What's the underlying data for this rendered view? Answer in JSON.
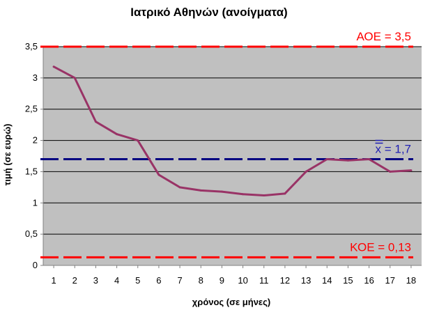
{
  "chart_data": {
    "type": "line",
    "title": "Ιατρικό Αθηνών (ανοίγματα)",
    "xlabel": "χρόνος (σε μήνες)",
    "ylabel": "τιμή (σε ευρώ)",
    "x": [
      1,
      2,
      3,
      4,
      5,
      6,
      7,
      8,
      9,
      10,
      11,
      12,
      13,
      14,
      15,
      16,
      17,
      18
    ],
    "xlim": [
      0.5,
      18.5
    ],
    "ylim": [
      0,
      3.5
    ],
    "yticks": [
      "0",
      "0,5",
      "1",
      "1,5",
      "2",
      "2,5",
      "3",
      "3,5"
    ],
    "ytick_values": [
      0,
      0.5,
      1,
      1.5,
      2,
      2.5,
      3,
      3.5
    ],
    "grid": true,
    "series": [
      {
        "color": "#993366",
        "values": [
          3.18,
          3.0,
          2.3,
          2.1,
          2.0,
          1.45,
          1.25,
          1.2,
          1.18,
          1.14,
          1.12,
          1.15,
          1.5,
          1.7,
          1.68,
          1.7,
          1.5,
          1.52
        ]
      }
    ],
    "reference_lines": [
      {
        "label": "ΑΟΕ = 3,5",
        "value": 3.5,
        "color": "#ff0000",
        "label_color": "#ff0000"
      },
      {
        "label": "x = 1,7",
        "value": 1.7,
        "color": "#000080",
        "label_color": "#1f1fb3",
        "overline": true
      },
      {
        "label": "ΚΟΕ = 0,13",
        "value": 0.13,
        "color": "#ff0000",
        "label_color": "#ff0000"
      }
    ],
    "plot_background": "#c0c0c0"
  }
}
